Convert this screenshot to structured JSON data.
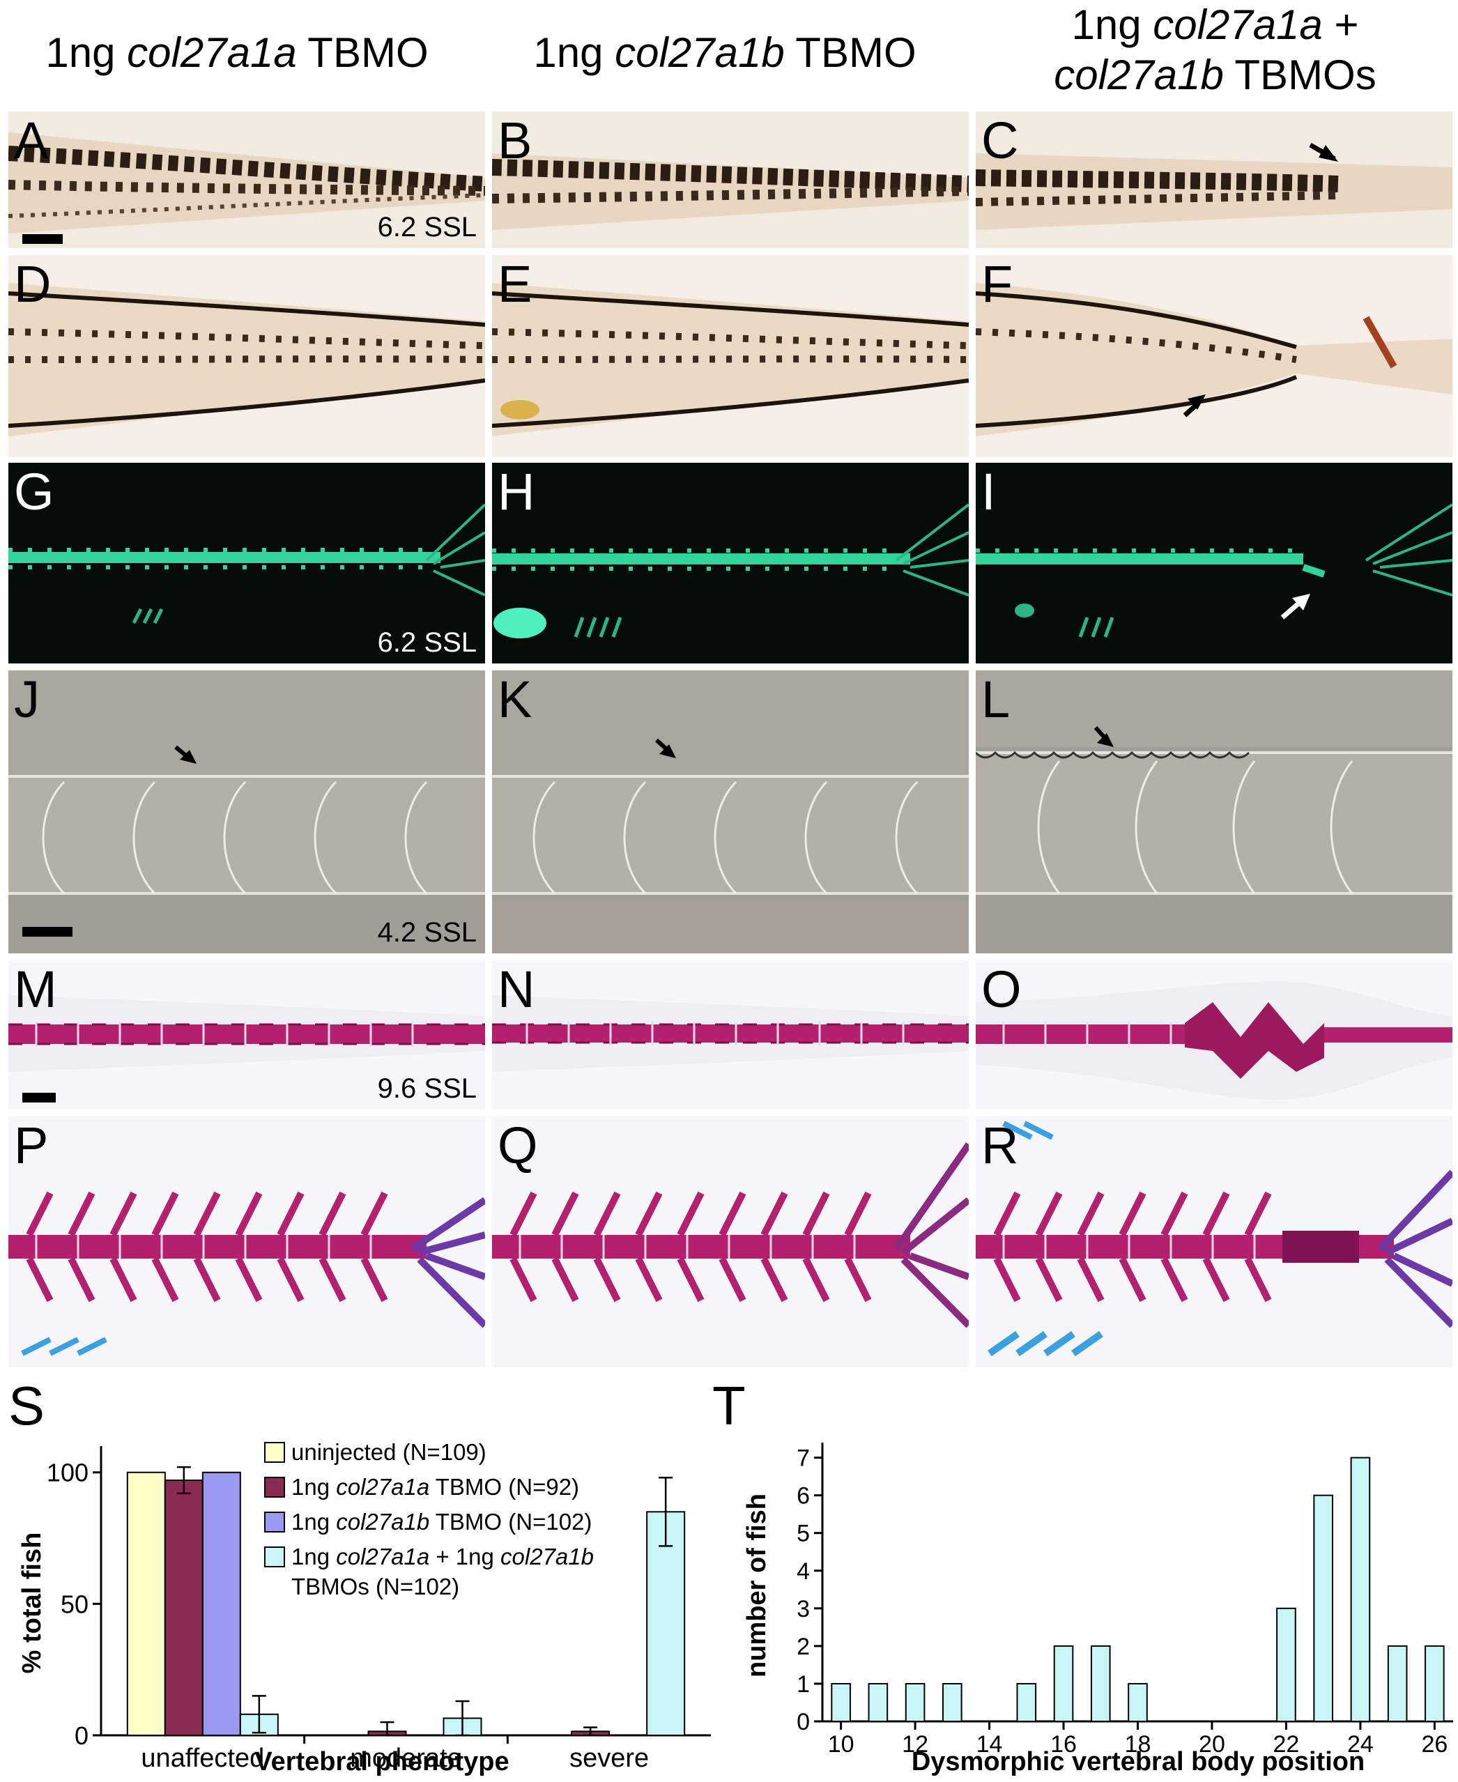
{
  "columns": [
    {
      "pre": "1ng ",
      "gene": "col27a1a",
      "post": " TBMO",
      "line2_pre": "",
      "line2_gene": "",
      "line2_post": ""
    },
    {
      "pre": "1ng ",
      "gene": "col27a1b",
      "post": " TBMO",
      "line2_pre": "",
      "line2_gene": "",
      "line2_post": ""
    },
    {
      "pre": "1ng ",
      "gene": "col27a1a",
      "post": " +",
      "line2_pre": "",
      "line2_gene": "col27a1b",
      "line2_post": " TBMOs"
    }
  ],
  "panels": {
    "A": "A",
    "B": "B",
    "C": "C",
    "D": "D",
    "E": "E",
    "F": "F",
    "G": "G",
    "H": "H",
    "I": "I",
    "J": "J",
    "K": "K",
    "L": "L",
    "M": "M",
    "N": "N",
    "O": "O",
    "P": "P",
    "Q": "Q",
    "R": "R"
  },
  "stage_labels": {
    "row1": "6.2 SSL",
    "row3": "6.2 SSL",
    "row4": "4.2 SSL",
    "row5": "9.6 SSL"
  },
  "colors": {
    "pigment_bg": "#efe6da",
    "pigment_dots": "#2a1d14",
    "fluor_bg": "#050b08",
    "fluor_green": "#33d39a",
    "dic_bg": "#9c9a92",
    "alizarin": "#b3206e",
    "alcian": "#3aa0e0"
  },
  "chart_labels": {
    "S": "S",
    "T": "T"
  },
  "chart_data": [
    {
      "type": "bar",
      "title": "",
      "categories": [
        "unaffected",
        "moderate",
        "severe"
      ],
      "series": [
        {
          "name": "uninjected (N=109)",
          "name_parts": [
            "uninjected (N=109)",
            "",
            ""
          ],
          "color": "#ffffc8",
          "values": [
            100,
            0,
            0
          ],
          "errors": [
            0,
            0,
            0
          ]
        },
        {
          "name": "1ng col27a1a TBMO (N=92)",
          "name_parts": [
            "1ng ",
            "col27a1a",
            " TBMO (N=92)"
          ],
          "color": "#8b2a55",
          "values": [
            97,
            1.5,
            1.5
          ],
          "errors": [
            5,
            3.5,
            1.5
          ]
        },
        {
          "name": "1ng col27a1b TBMO (N=102)",
          "name_parts": [
            "1ng ",
            "col27a1b",
            " TBMO (N=102)"
          ],
          "color": "#9a9af0",
          "values": [
            100,
            0,
            0
          ],
          "errors": [
            0,
            0,
            0
          ]
        },
        {
          "name": "1ng col27a1a + 1ng col27a1b TBMOs (N=102)",
          "name_parts": [
            "1ng ",
            "col27a1a",
            " + 1ng ",
            "col27a1b"
          ],
          "name_line2": "TBMOs (N=102)",
          "color": "#c8f5f5",
          "values": [
            8,
            6.5,
            85
          ],
          "errors": [
            7,
            6.5,
            13
          ]
        }
      ],
      "xlabel": "Vertebral phenotype",
      "ylabel": "% total fish",
      "yticks": [
        0,
        50,
        100
      ],
      "ylim": [
        0,
        110
      ]
    },
    {
      "type": "bar",
      "title": "",
      "x": [
        10,
        11,
        12,
        13,
        14,
        15,
        16,
        17,
        18,
        19,
        20,
        21,
        22,
        23,
        24,
        25,
        26
      ],
      "values": [
        1,
        1,
        1,
        1,
        0,
        1,
        2,
        2,
        1,
        0,
        0,
        0,
        3,
        6,
        7,
        2,
        2
      ],
      "color": "#c8f5f5",
      "xticks": [
        10,
        12,
        14,
        16,
        18,
        20,
        22,
        24,
        26
      ],
      "yticks": [
        0,
        1,
        2,
        3,
        4,
        5,
        6,
        7
      ],
      "xlabel": "Dysmorphic vertebral body position",
      "ylabel": "number of fish",
      "ylim": [
        0,
        7.4
      ]
    }
  ]
}
